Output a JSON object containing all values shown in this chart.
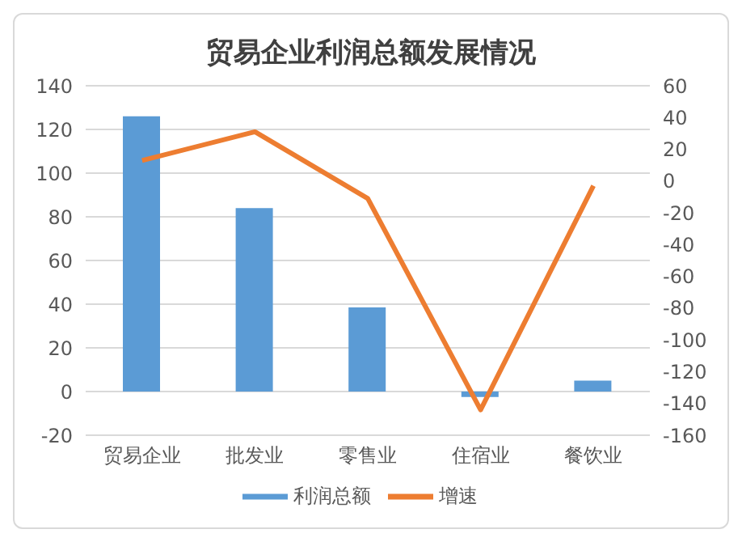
{
  "chart_data": {
    "type": "bar",
    "title": "贸易企业利润总额发展情况",
    "categories": [
      "贸易企业",
      "批发业",
      "零售业",
      "住宿业",
      "餐饮业"
    ],
    "series": [
      {
        "name": "利润总额",
        "color": "#5b9bd5",
        "values": [
          126,
          84,
          38.5,
          -2.5,
          5
        ]
      },
      {
        "name": "增速",
        "type": "line",
        "axis": "y2",
        "color": "#ed7d31",
        "values": [
          13,
          31,
          -11,
          -144,
          -3
        ]
      }
    ],
    "ylim": [
      -20,
      140
    ],
    "yticks": [
      -20,
      0,
      20,
      40,
      60,
      80,
      100,
      120,
      140
    ],
    "y2lim": [
      -160,
      60
    ],
    "y2ticks": [
      -160,
      -140,
      -120,
      -100,
      -80,
      -60,
      -40,
      -20,
      0,
      20,
      40,
      60
    ],
    "grid": "y",
    "legend": "bottom",
    "marker": "none"
  }
}
